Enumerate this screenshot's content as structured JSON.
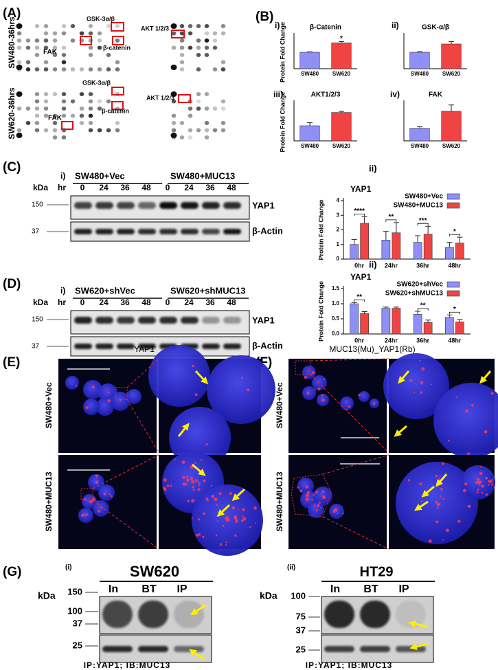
{
  "panel_labels": {
    "a": "(A)",
    "b": "(B)",
    "c": "(C)",
    "d": "(D)",
    "e": "(E)",
    "f": "(F)",
    "g": "(G)"
  },
  "panel_a": {
    "rows": [
      "SW480-36hrs",
      "SW620-36hrs"
    ],
    "gsk": "GSK-3α/β",
    "akt": "AKT 1/2/3",
    "catenin": "β-catenin",
    "fak": "FAK"
  },
  "panel_c": {
    "sub": "i)",
    "groups": [
      "SW480+Vec",
      "SW480+MUC13"
    ],
    "kda": "kDa",
    "hr": "hr",
    "times": [
      0,
      24,
      36,
      48,
      0,
      24,
      36,
      48
    ],
    "markers": [
      150,
      37
    ],
    "bands": [
      "YAP1",
      "β-Actin"
    ]
  },
  "panel_d": {
    "sub": "i)",
    "groups": [
      "SW620+shVec",
      "SW620+shMUC13"
    ],
    "kda": "kDa",
    "hr": "hr",
    "times": [
      0,
      24,
      36,
      48,
      0,
      24,
      36,
      48
    ],
    "markers": [
      150,
      37
    ],
    "bands": [
      "YAP1",
      "β-Actin"
    ]
  },
  "panel_e": {
    "title": "YAP1",
    "rows": [
      "SW480+Vec",
      "SW480+MUC13"
    ]
  },
  "panel_f": {
    "title": "MUC13(Mu)_YAP1(Rb)",
    "rows": [
      "SW480+Vec",
      "SW480+MUC13"
    ]
  },
  "panel_g": {
    "left": {
      "sub": "(i)",
      "cell": "SW620",
      "lanes": [
        "In",
        "BT",
        "IP"
      ],
      "kda": "kDa",
      "markers": [
        150,
        100,
        37,
        25
      ],
      "caption": "IP:YAP1; IB:MUC13"
    },
    "right": {
      "sub": "(ii)",
      "cell": "HT29",
      "lanes": [
        "In",
        "BT",
        "IP"
      ],
      "kda": "kDa",
      "markers": [
        100,
        75,
        37,
        25
      ],
      "caption": "IP:YAP1; IB:MUC13"
    }
  },
  "chart_data": [
    {
      "type": "bar",
      "panel": "i)",
      "title": "β-Catenin",
      "ylabel": "Protein Fold Change",
      "categories": [
        "SW480",
        "SW620"
      ],
      "values": [
        1.0,
        1.57
      ],
      "errors": [
        0.02,
        0.08
      ],
      "colors": [
        "#8f8ff5",
        "#f04444"
      ],
      "significance": [
        null,
        "*"
      ],
      "ylim": [
        0,
        2
      ]
    },
    {
      "type": "bar",
      "panel": "ii)",
      "title": "GSK-α/β",
      "categories": [
        "SW480",
        "SW620"
      ],
      "values": [
        1.0,
        1.5
      ],
      "errors": [
        0.03,
        0.15
      ],
      "colors": [
        "#8f8ff5",
        "#f04444"
      ],
      "ylim": [
        0,
        2
      ]
    },
    {
      "type": "bar",
      "panel": "iii)",
      "title": "AKT1/2/3",
      "ylabel": "Protein Fold Change",
      "categories": [
        "SW480",
        "SW620"
      ],
      "values": [
        1.0,
        1.88
      ],
      "errors": [
        0.2,
        0.07
      ],
      "colors": [
        "#8f8ff5",
        "#f04444"
      ],
      "ylim": [
        0,
        2.5
      ]
    },
    {
      "type": "bar",
      "panel": "iv)",
      "title": "FAK",
      "categories": [
        "SW480",
        "SW620"
      ],
      "values": [
        1.0,
        2.35
      ],
      "errors": [
        0.12,
        0.5
      ],
      "colors": [
        "#8f8ff5",
        "#f04444"
      ],
      "ylim": [
        0,
        3
      ]
    },
    {
      "type": "bar",
      "panel": "ii)",
      "title": "YAP1",
      "ylabel": "Protein Fold Change",
      "categories": [
        "0hr",
        "24hr",
        "36hr",
        "48hr"
      ],
      "series": [
        {
          "name": "SW480+Vec",
          "color": "#8f8ff5",
          "values": [
            1.0,
            1.3,
            1.15,
            0.8
          ],
          "errors": [
            0.35,
            0.6,
            0.45,
            0.35
          ]
        },
        {
          "name": "SW480+MUC13",
          "color": "#f04444",
          "values": [
            2.45,
            1.8,
            1.7,
            1.1
          ],
          "errors": [
            0.45,
            0.7,
            0.55,
            0.4
          ]
        }
      ],
      "significance": [
        "****",
        "**",
        "***",
        "*"
      ],
      "ylim": [
        0,
        4
      ],
      "yticks": [
        0,
        1,
        2,
        3,
        4
      ]
    },
    {
      "type": "bar",
      "panel": "ii)",
      "title": "YAP1",
      "ylabel": "Protein Fold Change",
      "categories": [
        "0hr",
        "24hr",
        "36hr",
        "48hr"
      ],
      "series": [
        {
          "name": "SW620+shVec",
          "color": "#8f8ff5",
          "values": [
            1.0,
            0.85,
            0.65,
            0.55
          ],
          "errors": [
            0.04,
            0.04,
            0.1,
            0.08
          ]
        },
        {
          "name": "SW620+shMUC13",
          "color": "#f04444",
          "values": [
            0.68,
            0.85,
            0.38,
            0.4
          ],
          "errors": [
            0.06,
            0.04,
            0.08,
            0.08
          ]
        }
      ],
      "significance": [
        "**",
        null,
        "**",
        "*"
      ],
      "ylim": [
        0,
        1.5
      ],
      "yticks": [
        {
          "value": 0,
          "label": "0.0"
        },
        {
          "value": 0.5,
          "label": "0.5"
        },
        {
          "value": 1,
          "label": "1.0"
        },
        {
          "value": 1.5,
          "label": "1.5"
        }
      ]
    }
  ]
}
